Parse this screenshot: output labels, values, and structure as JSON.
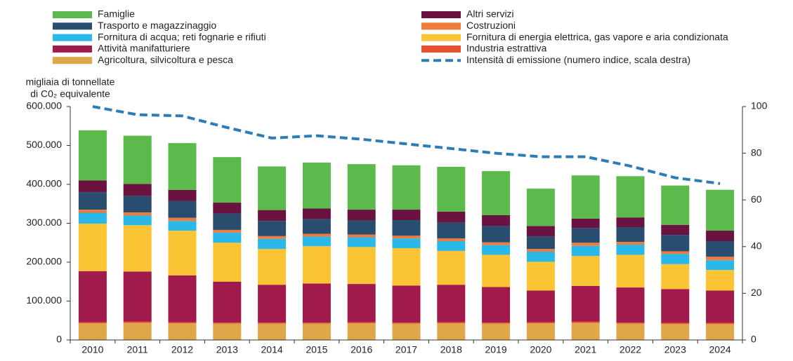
{
  "chart_data": {
    "type": "stacked_bar_line",
    "y_label": [
      "migliaia di tonnellate",
      "di C0₂ equivalente"
    ],
    "categories": [
      "2010",
      "2011",
      "2012",
      "2013",
      "2014",
      "2015",
      "2016",
      "2017",
      "2018",
      "2019",
      "2020",
      "2021",
      "2022",
      "2023",
      "2024"
    ],
    "series": [
      {
        "name": "Agricoltura, silvicoltura e pesca",
        "color": "#dfa64a",
        "values": [
          43000,
          44000,
          43000,
          42000,
          42000,
          42000,
          43000,
          42000,
          43000,
          42000,
          43000,
          44000,
          42000,
          41000,
          41000
        ]
      },
      {
        "name": "Industria estrattiva",
        "color": "#e8502e",
        "values": [
          3000,
          3000,
          3000,
          3000,
          3000,
          3000,
          3000,
          3000,
          3000,
          3000,
          3000,
          3000,
          3000,
          3000,
          3000
        ]
      },
      {
        "name": "Attività manifatturiere",
        "color": "#a01b4b",
        "values": [
          131000,
          129000,
          120000,
          105000,
          97000,
          100000,
          98000,
          95000,
          96000,
          91000,
          81000,
          92000,
          90000,
          87000,
          83000
        ]
      },
      {
        "name": "Fornitura di energia elettrica, gas vapore e aria condizionata",
        "color": "#fbc434",
        "values": [
          122000,
          119000,
          115000,
          100000,
          92000,
          96000,
          95000,
          96000,
          87000,
          83000,
          74000,
          77000,
          84000,
          64000,
          53000
        ]
      },
      {
        "name": "Fornitura di acqua; reti fognarie e rifiuti",
        "color": "#2ab8e8",
        "values": [
          28000,
          25000,
          25000,
          26000,
          26000,
          25000,
          25000,
          25000,
          25000,
          25000,
          26000,
          26000,
          26000,
          26000,
          25000
        ]
      },
      {
        "name": "Costruzioni",
        "color": "#ee7a3c",
        "values": [
          8000,
          8000,
          8000,
          7000,
          7000,
          7000,
          7000,
          7000,
          7000,
          7000,
          7000,
          8000,
          7000,
          7000,
          9000
        ]
      },
      {
        "name": "Trasporto e magazzinaggio",
        "color": "#294d6f",
        "values": [
          45000,
          42000,
          43000,
          42000,
          39000,
          38000,
          36000,
          40000,
          41000,
          42000,
          32000,
          38000,
          38000,
          42000,
          40000
        ]
      },
      {
        "name": "Altri servizi",
        "color": "#6a1240",
        "values": [
          30000,
          31000,
          29000,
          28000,
          28000,
          27000,
          28000,
          27000,
          28000,
          28000,
          27000,
          24000,
          25000,
          26000,
          27000
        ]
      },
      {
        "name": "Famiglie",
        "color": "#5cb94b",
        "values": [
          129000,
          124000,
          120000,
          117000,
          112000,
          118000,
          117000,
          114000,
          115000,
          113000,
          96000,
          111000,
          106000,
          101000,
          105000
        ]
      },
      {
        "name": "Intensità di emissione (numero indice, scala destra)",
        "color": "#2a7db6",
        "axis": "y2",
        "values": [
          100,
          96.5,
          96,
          91,
          86.5,
          87.5,
          86,
          84,
          82,
          80,
          78.5,
          78.5,
          74.5,
          69.5,
          67
        ]
      }
    ],
    "ylim": [
      0,
      600000
    ],
    "yticks": [
      {
        "value": 0,
        "label": "0"
      },
      {
        "value": 100000,
        "label": "100.000"
      },
      {
        "value": 200000,
        "label": "200.000"
      },
      {
        "value": 300000,
        "label": "300.000"
      },
      {
        "value": 400000,
        "label": "400.000"
      },
      {
        "value": 500000,
        "label": "500.000"
      },
      {
        "value": 600000,
        "label": "600.000"
      }
    ],
    "y2lim": [
      0,
      100
    ],
    "y2ticks": [
      0,
      20,
      40,
      60,
      80,
      100
    ]
  }
}
